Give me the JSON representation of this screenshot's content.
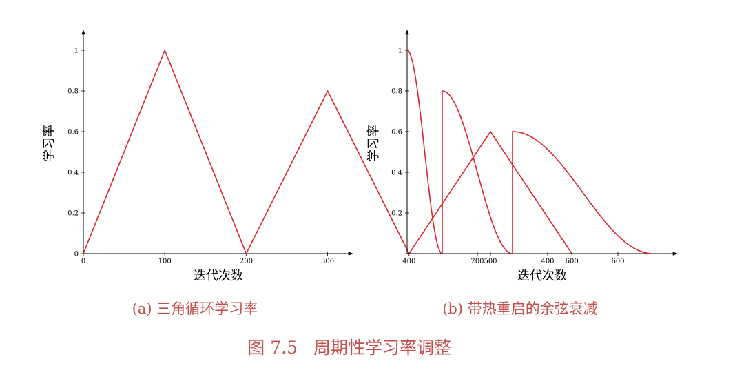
{
  "figure": {
    "caption_number": "图 7.5",
    "caption_text": "周期性学习率调整"
  },
  "colors": {
    "line": "#d9252c",
    "axis": "#000000",
    "caption": "#c0504d"
  },
  "chart_data": [
    {
      "type": "line",
      "subcaption": "(a) 三角循环学习率",
      "xlabel": "迭代次数",
      "ylabel": "学习率",
      "xlim": [
        0,
        660
      ],
      "ylim": [
        0,
        1.1
      ],
      "xticks": [
        0,
        100,
        200,
        300,
        400,
        500,
        600
      ],
      "xtick_labels": [
        "0",
        "100",
        "200",
        "300",
        "400",
        "500",
        "600"
      ],
      "yticks": [
        0,
        0.2,
        0.4,
        0.6,
        0.8,
        1
      ],
      "ytick_labels": [
        "0",
        "0.2",
        "0.4",
        "0.6",
        "0.8",
        "1"
      ],
      "grid": false,
      "series": [
        {
          "x": [
            0,
            100,
            200,
            300,
            400,
            500,
            600
          ],
          "y": [
            0,
            1.0,
            0,
            0.8,
            0,
            0.6,
            0
          ]
        }
      ]
    },
    {
      "type": "line",
      "subcaption": "(b) 带热重启的余弦衰减",
      "xlabel": "迭代次数",
      "ylabel": "学习率",
      "xlim": [
        0,
        770
      ],
      "ylim": [
        0,
        1.1
      ],
      "xticks": [
        200,
        400,
        600
      ],
      "xtick_labels": [
        "200",
        "400",
        "600"
      ],
      "yticks": [
        0.2,
        0.4,
        0.6,
        0.8,
        1
      ],
      "ytick_labels": [
        "0.2",
        "0.4",
        "0.6",
        "0.8",
        "1"
      ],
      "grid": false,
      "restarts": [
        {
          "start": 0,
          "end": 100,
          "peak": 1.0
        },
        {
          "start": 100,
          "end": 300,
          "peak": 0.8
        },
        {
          "start": 300,
          "end": 700,
          "peak": 0.6
        }
      ]
    }
  ]
}
